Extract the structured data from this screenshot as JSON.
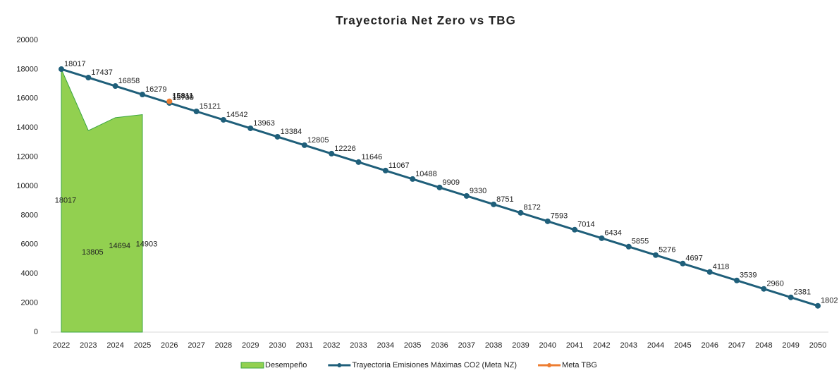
{
  "chart_data": {
    "type": "line",
    "title": "Trayectoria Net Zero vs TBG",
    "categories": [
      "2022",
      "2023",
      "2024",
      "2025",
      "2026",
      "2027",
      "2028",
      "2029",
      "2030",
      "2031",
      "2032",
      "2033",
      "2034",
      "2035",
      "2036",
      "2037",
      "2038",
      "2039",
      "2040",
      "2041",
      "2042",
      "2043",
      "2044",
      "2045",
      "2046",
      "2047",
      "2048",
      "2049",
      "2050"
    ],
    "series": [
      {
        "name": "Desempeño",
        "type": "area",
        "color": "#92d050",
        "values": [
          18017,
          13805,
          14694,
          14903,
          null,
          null,
          null,
          null,
          null,
          null,
          null,
          null,
          null,
          null,
          null,
          null,
          null,
          null,
          null,
          null,
          null,
          null,
          null,
          null,
          null,
          null,
          null,
          null,
          null
        ]
      },
      {
        "name": "Trayectoria Emisiones Máximas CO2 (Meta NZ)",
        "type": "line",
        "color": "#1f5f7a",
        "values": [
          18017,
          17437,
          16858,
          16279,
          15700,
          15121,
          14542,
          13963,
          13384,
          12805,
          12226,
          11646,
          11067,
          10488,
          9909,
          9330,
          8751,
          8172,
          7593,
          7014,
          6434,
          5855,
          5276,
          4697,
          4118,
          3539,
          2960,
          2381,
          1802
        ]
      },
      {
        "name": "Meta TBG",
        "type": "line",
        "color": "#ed7d31",
        "values": [
          null,
          null,
          null,
          null,
          15811,
          null,
          null,
          null,
          null,
          null,
          null,
          null,
          null,
          null,
          null,
          null,
          null,
          null,
          null,
          null,
          null,
          null,
          null,
          null,
          null,
          null,
          null,
          null,
          null
        ]
      }
    ],
    "ylim": [
      0,
      20000
    ],
    "yticks": [
      0,
      2000,
      4000,
      6000,
      8000,
      10000,
      12000,
      14000,
      16000,
      18000,
      20000
    ],
    "grid": false,
    "legend": "bottom"
  }
}
